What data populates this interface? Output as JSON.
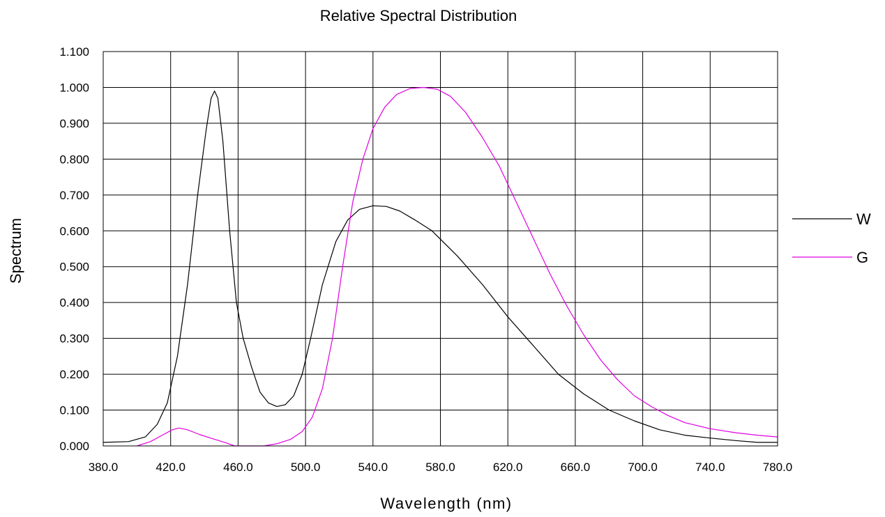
{
  "chart_data": {
    "type": "line",
    "title": "Relative Spectral Distribution",
    "xlabel": "Wavelength (nm)",
    "ylabel": "Spectrum",
    "xlim": [
      380,
      780
    ],
    "ylim": [
      0,
      1.1
    ],
    "x_ticks": [
      "380.0",
      "420.0",
      "460.0",
      "500.0",
      "540.0",
      "580.0",
      "620.0",
      "660.0",
      "700.0",
      "740.0",
      "780.0"
    ],
    "y_ticks": [
      "0.000",
      "0.100",
      "0.200",
      "0.300",
      "0.400",
      "0.500",
      "0.600",
      "0.700",
      "0.800",
      "0.900",
      "1.000",
      "1.100"
    ],
    "grid": true,
    "legend_position": "right",
    "series": [
      {
        "name": "W",
        "color": "#000000",
        "points": [
          [
            380,
            0.01
          ],
          [
            395,
            0.012
          ],
          [
            405,
            0.025
          ],
          [
            412,
            0.06
          ],
          [
            418,
            0.12
          ],
          [
            424,
            0.25
          ],
          [
            430,
            0.45
          ],
          [
            436,
            0.7
          ],
          [
            441,
            0.88
          ],
          [
            444,
            0.97
          ],
          [
            446,
            0.99
          ],
          [
            448,
            0.97
          ],
          [
            451,
            0.85
          ],
          [
            455,
            0.6
          ],
          [
            459,
            0.4
          ],
          [
            463,
            0.3
          ],
          [
            468,
            0.22
          ],
          [
            473,
            0.15
          ],
          [
            478,
            0.12
          ],
          [
            483,
            0.11
          ],
          [
            488,
            0.115
          ],
          [
            493,
            0.14
          ],
          [
            498,
            0.2
          ],
          [
            503,
            0.3
          ],
          [
            510,
            0.45
          ],
          [
            518,
            0.57
          ],
          [
            525,
            0.63
          ],
          [
            532,
            0.66
          ],
          [
            540,
            0.67
          ],
          [
            548,
            0.668
          ],
          [
            556,
            0.655
          ],
          [
            565,
            0.63
          ],
          [
            575,
            0.6
          ],
          [
            590,
            0.53
          ],
          [
            605,
            0.45
          ],
          [
            620,
            0.36
          ],
          [
            635,
            0.28
          ],
          [
            650,
            0.2
          ],
          [
            665,
            0.145
          ],
          [
            680,
            0.1
          ],
          [
            695,
            0.07
          ],
          [
            710,
            0.045
          ],
          [
            725,
            0.03
          ],
          [
            740,
            0.022
          ],
          [
            755,
            0.015
          ],
          [
            768,
            0.01
          ],
          [
            780,
            0.01
          ]
        ]
      },
      {
        "name": "G",
        "color": "#e000e0",
        "points": [
          [
            400,
            0.0
          ],
          [
            408,
            0.012
          ],
          [
            415,
            0.03
          ],
          [
            421,
            0.045
          ],
          [
            425,
            0.05
          ],
          [
            430,
            0.045
          ],
          [
            437,
            0.032
          ],
          [
            445,
            0.02
          ],
          [
            452,
            0.01
          ],
          [
            458,
            0.0
          ],
          [
            475,
            0.0
          ],
          [
            483,
            0.006
          ],
          [
            491,
            0.018
          ],
          [
            498,
            0.04
          ],
          [
            504,
            0.08
          ],
          [
            510,
            0.16
          ],
          [
            516,
            0.3
          ],
          [
            522,
            0.5
          ],
          [
            528,
            0.68
          ],
          [
            534,
            0.8
          ],
          [
            540,
            0.885
          ],
          [
            547,
            0.945
          ],
          [
            554,
            0.98
          ],
          [
            562,
            0.997
          ],
          [
            570,
            1.0
          ],
          [
            578,
            0.995
          ],
          [
            586,
            0.975
          ],
          [
            595,
            0.93
          ],
          [
            605,
            0.86
          ],
          [
            615,
            0.78
          ],
          [
            625,
            0.68
          ],
          [
            635,
            0.58
          ],
          [
            645,
            0.48
          ],
          [
            655,
            0.39
          ],
          [
            665,
            0.31
          ],
          [
            675,
            0.24
          ],
          [
            685,
            0.185
          ],
          [
            695,
            0.14
          ],
          [
            705,
            0.11
          ],
          [
            715,
            0.085
          ],
          [
            725,
            0.065
          ],
          [
            740,
            0.048
          ],
          [
            755,
            0.037
          ],
          [
            768,
            0.03
          ],
          [
            780,
            0.025
          ]
        ]
      }
    ]
  }
}
